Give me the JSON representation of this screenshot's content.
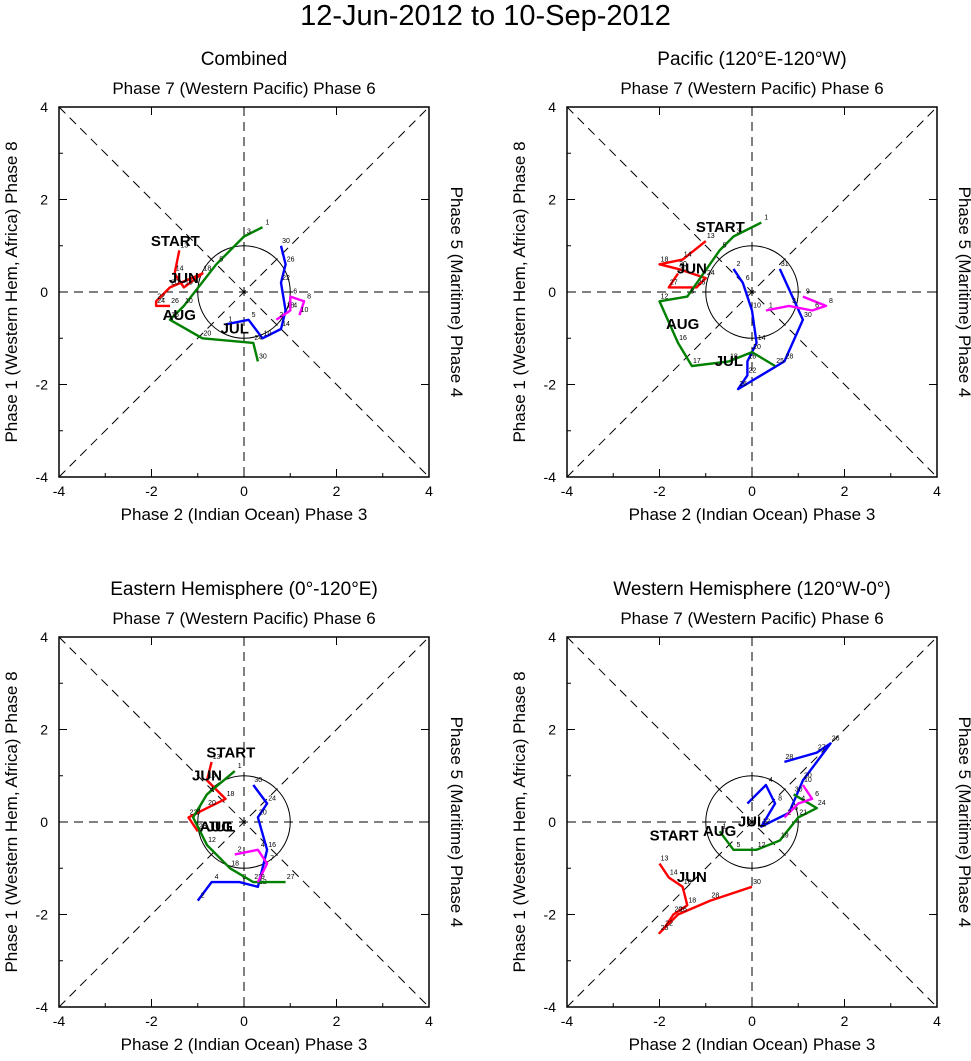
{
  "title": "12-Jun-2012 to 10-Sep-2012",
  "axis_text": {
    "top": "Phase 7 (Western Pacific) Phase 6",
    "bottom": "Phase 2 (Indian Ocean) Phase 3",
    "left": "Phase 1 (Western Hem, Africa) Phase 8",
    "right": "Phase 5 (Maritime) Phase 4"
  },
  "start_label": "START",
  "month_colors": {
    "JUN": "#ff0000",
    "JUL": "#0000ff",
    "AUG": "#008000",
    "SEP": "#ff00ff"
  },
  "chart_data": [
    {
      "type": "line",
      "title": "Combined",
      "xlabel": "Phase 2 (Indian Ocean) Phase 3",
      "ylabel": "Phase 1 (Western Hem, Africa) Phase 8",
      "xlim": [
        -4,
        4
      ],
      "ylim": [
        -4,
        4
      ],
      "ticks": [
        -4,
        -2,
        0,
        2,
        4
      ],
      "unit_circle_radius": 1,
      "start_point": [
        -1.7,
        1.0
      ],
      "series": [
        {
          "name": "JUN",
          "points": [
            [
              -1.4,
              0.9
            ],
            [
              -1.5,
              0.4
            ],
            [
              -1.3,
              0.1
            ],
            [
              -0.9,
              0.4
            ],
            [
              -1.6,
              0.1
            ],
            [
              -1.9,
              -0.2
            ],
            [
              -1.9,
              -0.3
            ],
            [
              -1.6,
              -0.3
            ]
          ],
          "days": [
            13,
            14,
            16,
            18,
            20,
            22,
            24,
            26
          ]
        },
        {
          "name": "JUL",
          "points": [
            [
              -0.4,
              -0.7
            ],
            [
              0.1,
              -0.6
            ],
            [
              0.4,
              -1.0
            ],
            [
              0.8,
              -0.8
            ],
            [
              0.9,
              -0.4
            ],
            [
              0.8,
              0.2
            ],
            [
              0.9,
              0.6
            ],
            [
              0.8,
              1.0
            ]
          ],
          "days": [
            1,
            5,
            10,
            14,
            18,
            22,
            26,
            30
          ]
        },
        {
          "name": "AUG",
          "points": [
            [
              0.4,
              1.4
            ],
            [
              0.0,
              1.2
            ],
            [
              -0.6,
              0.6
            ],
            [
              -1.3,
              -0.3
            ],
            [
              -1.6,
              -0.6
            ],
            [
              -0.9,
              -1.0
            ],
            [
              0.2,
              -1.1
            ],
            [
              0.3,
              -1.5
            ]
          ],
          "days": [
            1,
            3,
            5,
            10,
            16,
            20,
            24,
            30
          ]
        },
        {
          "name": "SEP",
          "points": [
            [
              0.7,
              -0.6
            ],
            [
              1.0,
              -0.4
            ],
            [
              1.0,
              -0.1
            ],
            [
              1.3,
              -0.2
            ],
            [
              1.2,
              -0.5
            ]
          ],
          "days": [
            2,
            4,
            6,
            8,
            10
          ]
        }
      ],
      "month_label_positions": [
        [
          "JUN",
          -1.3,
          0.2
        ],
        [
          "JUL",
          -0.2,
          -0.9
        ],
        [
          "AUG",
          -1.4,
          -0.6
        ]
      ]
    },
    {
      "type": "line",
      "title": "Pacific (120°E-120°W)",
      "xlabel": "Phase 2 (Indian Ocean) Phase 3",
      "ylabel": "Phase 1 (Western Hem, Africa) Phase 8",
      "xlim": [
        -4,
        4
      ],
      "ylim": [
        -4,
        4
      ],
      "ticks": [
        -4,
        -2,
        0,
        2,
        4
      ],
      "unit_circle_radius": 1,
      "start_point": [
        -0.9,
        1.3
      ],
      "series": [
        {
          "name": "JUN",
          "points": [
            [
              -1.0,
              1.1
            ],
            [
              -1.5,
              0.7
            ],
            [
              -2.0,
              0.6
            ],
            [
              -1.6,
              0.5
            ],
            [
              -1.0,
              0.3
            ],
            [
              -1.2,
              0.1
            ],
            [
              -1.8,
              0.1
            ],
            [
              -1.6,
              0.4
            ]
          ],
          "days": [
            13,
            14,
            18,
            20,
            24,
            25,
            27,
            30
          ]
        },
        {
          "name": "JUL",
          "points": [
            [
              -0.4,
              0.5
            ],
            [
              -0.2,
              0.2
            ],
            [
              0.0,
              -0.4
            ],
            [
              0.1,
              -1.1
            ],
            [
              -0.1,
              -1.5
            ],
            [
              -0.1,
              -1.8
            ],
            [
              -0.3,
              -2.1
            ],
            [
              0.7,
              -1.5
            ],
            [
              1.1,
              -0.6
            ],
            [
              0.6,
              0.5
            ]
          ],
          "days": [
            2,
            6,
            10,
            14,
            18,
            22,
            26,
            28,
            30,
            31
          ]
        },
        {
          "name": "AUG",
          "points": [
            [
              0.2,
              1.5
            ],
            [
              -0.4,
              1.2
            ],
            [
              -0.7,
              0.9
            ],
            [
              -1.4,
              -0.1
            ],
            [
              -2.0,
              -0.2
            ],
            [
              -1.6,
              -1.1
            ],
            [
              -1.3,
              -1.6
            ],
            [
              -0.5,
              -1.5
            ],
            [
              0.0,
              -1.3
            ],
            [
              0.5,
              -1.6
            ]
          ],
          "days": [
            1,
            3,
            5,
            8,
            12,
            16,
            17,
            18,
            20,
            25
          ]
        },
        {
          "name": "SEP",
          "points": [
            [
              0.3,
              -0.4
            ],
            [
              0.8,
              -0.3
            ],
            [
              1.3,
              -0.4
            ],
            [
              1.6,
              -0.3
            ],
            [
              1.1,
              -0.1
            ]
          ],
          "days": [
            1,
            3,
            6,
            8,
            9
          ]
        }
      ],
      "month_label_positions": [
        [
          "JUN",
          -1.3,
          0.4
        ],
        [
          "JUL",
          -0.5,
          -1.6
        ],
        [
          "AUG",
          -1.5,
          -0.8
        ]
      ]
    },
    {
      "type": "line",
      "title": "Eastern Hemisphere (0°-120°E)",
      "xlabel": "Phase 2 (Indian Ocean) Phase 3",
      "ylabel": "Phase 1 (Western Hem, Africa) Phase 8",
      "xlim": [
        -4,
        4
      ],
      "ylim": [
        -4,
        4
      ],
      "ticks": [
        -4,
        -2,
        0,
        2,
        4
      ],
      "unit_circle_radius": 1,
      "start_point": [
        -0.5,
        1.4
      ],
      "series": [
        {
          "name": "JUN",
          "points": [
            [
              -0.7,
              1.3
            ],
            [
              -0.8,
              0.9
            ],
            [
              -0.4,
              0.5
            ],
            [
              -0.8,
              0.3
            ],
            [
              -1.2,
              0.1
            ],
            [
              -1.0,
              -0.2
            ]
          ],
          "days": [
            13,
            15,
            18,
            20,
            22,
            25
          ]
        },
        {
          "name": "JUL",
          "points": [
            [
              -1.0,
              -1.7
            ],
            [
              -0.7,
              -1.3
            ],
            [
              -0.1,
              -1.3
            ],
            [
              0.3,
              -1.4
            ],
            [
              0.5,
              -0.6
            ],
            [
              0.3,
              0.1
            ],
            [
              0.5,
              0.4
            ],
            [
              0.2,
              0.8
            ]
          ],
          "days": [
            2,
            4,
            8,
            12,
            16,
            20,
            24,
            30
          ]
        },
        {
          "name": "AUG",
          "points": [
            [
              -0.2,
              1.1
            ],
            [
              -0.8,
              0.6
            ],
            [
              -1.1,
              0.1
            ],
            [
              -0.8,
              -0.5
            ],
            [
              -0.3,
              -1.0
            ],
            [
              0.2,
              -1.3
            ],
            [
              0.9,
              -1.3
            ]
          ],
          "days": [
            1,
            4,
            8,
            12,
            18,
            23,
            27
          ]
        },
        {
          "name": "SEP",
          "points": [
            [
              -0.2,
              -0.7
            ],
            [
              0.3,
              -0.6
            ],
            [
              0.5,
              -0.9
            ],
            [
              0.3,
              -1.3
            ]
          ],
          "days": [
            2,
            4,
            7,
            9
          ]
        }
      ],
      "month_label_positions": [
        [
          "JUN",
          -0.8,
          0.9
        ],
        [
          "JUL",
          -0.5,
          -0.2
        ],
        [
          "AUG",
          -0.6,
          -0.2
        ]
      ]
    },
    {
      "type": "line",
      "title": "Western Hemisphere (120°W-0°)",
      "xlabel": "Phase 2 (Indian Ocean) Phase 3",
      "ylabel": "Phase 1 (Western Hem, Africa) Phase 8",
      "xlim": [
        -4,
        4
      ],
      "ylim": [
        -4,
        4
      ],
      "ticks": [
        -4,
        -2,
        0,
        2,
        4
      ],
      "unit_circle_radius": 1,
      "start_point": [
        -1.9,
        -0.4
      ],
      "series": [
        {
          "name": "JUN",
          "points": [
            [
              -2.0,
              -0.9
            ],
            [
              -1.8,
              -1.2
            ],
            [
              -1.5,
              -1.4
            ],
            [
              -1.4,
              -1.8
            ],
            [
              -1.7,
              -2.0
            ],
            [
              -1.9,
              -2.3
            ],
            [
              -2.0,
              -2.4
            ],
            [
              -1.6,
              -2.0
            ],
            [
              -0.9,
              -1.7
            ],
            [
              0.0,
              -1.4
            ]
          ],
          "days": [
            13,
            14,
            16,
            18,
            20,
            22,
            25,
            26,
            28,
            30
          ]
        },
        {
          "name": "JUL",
          "points": [
            [
              -0.1,
              0.4
            ],
            [
              0.3,
              0.8
            ],
            [
              0.5,
              0.4
            ],
            [
              0.2,
              -0.1
            ],
            [
              0.8,
              0.2
            ],
            [
              1.1,
              0.9
            ],
            [
              1.7,
              1.7
            ],
            [
              1.4,
              1.5
            ],
            [
              0.7,
              1.3
            ]
          ],
          "days": [
            1,
            4,
            8,
            12,
            16,
            20,
            26,
            27,
            28
          ]
        },
        {
          "name": "AUG",
          "points": [
            [
              -0.7,
              -0.2
            ],
            [
              -0.4,
              -0.6
            ],
            [
              0.1,
              -0.6
            ],
            [
              0.6,
              -0.4
            ],
            [
              1.0,
              0.1
            ],
            [
              1.4,
              0.3
            ],
            [
              0.9,
              0.6
            ]
          ],
          "days": [
            1,
            5,
            12,
            19,
            21,
            24,
            30
          ]
        },
        {
          "name": "SEP",
          "points": [
            [
              0.7,
              0.1
            ],
            [
              1.0,
              0.4
            ],
            [
              1.3,
              0.5
            ],
            [
              1.1,
              0.8
            ]
          ],
          "days": [
            2,
            4,
            6,
            10
          ]
        }
      ],
      "month_label_positions": [
        [
          "JUN",
          -1.3,
          -1.3
        ],
        [
          "JUL",
          -0.0,
          -0.1
        ],
        [
          "AUG",
          -0.7,
          -0.3
        ]
      ]
    }
  ]
}
